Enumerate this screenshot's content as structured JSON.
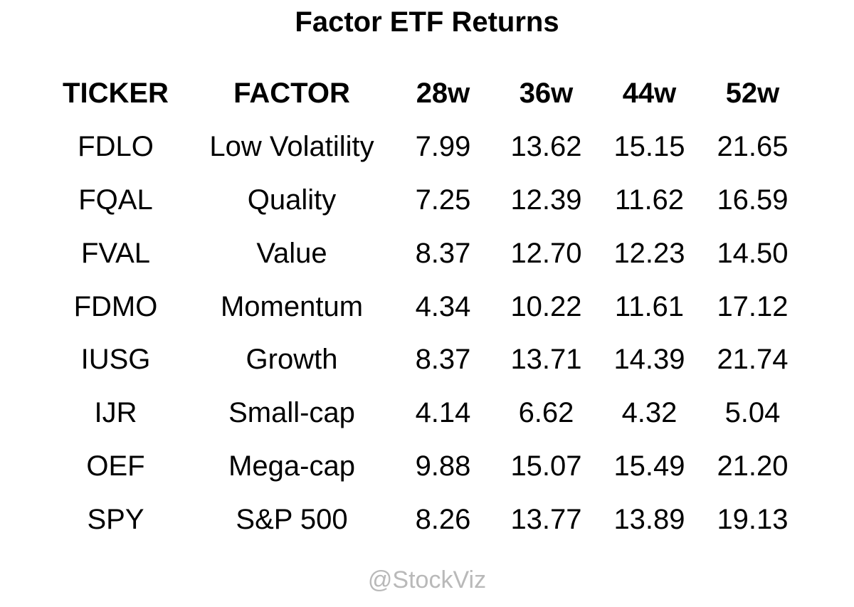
{
  "title": "Factor ETF Returns",
  "watermark": "@StockViz",
  "colors": {
    "text": "#000000",
    "watermark": "#b9b9b9",
    "background": "#ffffff"
  },
  "chart_data": {
    "type": "table",
    "title": "Factor ETF Returns",
    "columns": [
      "TICKER",
      "FACTOR",
      "28w",
      "36w",
      "44w",
      "52w"
    ],
    "rows": [
      [
        "FDLO",
        "Low Volatility",
        "7.99",
        "13.62",
        "15.15",
        "21.65"
      ],
      [
        "FQAL",
        "Quality",
        "7.25",
        "12.39",
        "11.62",
        "16.59"
      ],
      [
        "FVAL",
        "Value",
        "8.37",
        "12.70",
        "12.23",
        "14.50"
      ],
      [
        "FDMO",
        "Momentum",
        "4.34",
        "10.22",
        "11.61",
        "17.12"
      ],
      [
        "IUSG",
        "Growth",
        "8.37",
        "13.71",
        "14.39",
        "21.74"
      ],
      [
        "IJR",
        "Small-cap",
        "4.14",
        "6.62",
        "4.32",
        "5.04"
      ],
      [
        "OEF",
        "Mega-cap",
        "9.88",
        "15.07",
        "15.49",
        "21.20"
      ],
      [
        "SPY",
        "S&P 500",
        "8.26",
        "13.77",
        "13.89",
        "19.13"
      ]
    ],
    "units": "percent return over trailing weeks",
    "layout": "header row bold, all cells center-aligned, no gridlines"
  }
}
